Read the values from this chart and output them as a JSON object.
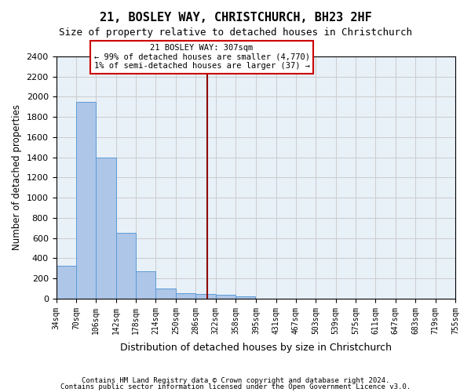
{
  "title": "21, BOSLEY WAY, CHRISTCHURCH, BH23 2HF",
  "subtitle": "Size of property relative to detached houses in Christchurch",
  "xlabel": "Distribution of detached houses by size in Christchurch",
  "ylabel": "Number of detached properties",
  "footnote1": "Contains HM Land Registry data © Crown copyright and database right 2024.",
  "footnote2": "Contains public sector information licensed under the Open Government Licence v3.0.",
  "bar_values": [
    325,
    1950,
    1400,
    650,
    270,
    100,
    50,
    45,
    35,
    20,
    0,
    0,
    0,
    0,
    0,
    0,
    0,
    0,
    0,
    0
  ],
  "bin_labels": [
    "34sqm",
    "70sqm",
    "106sqm",
    "142sqm",
    "178sqm",
    "214sqm",
    "250sqm",
    "286sqm",
    "322sqm",
    "358sqm",
    "395sqm",
    "431sqm",
    "467sqm",
    "503sqm",
    "539sqm",
    "575sqm",
    "611sqm",
    "647sqm",
    "683sqm",
    "719sqm",
    "755sqm"
  ],
  "bin_edges": [
    34,
    70,
    106,
    142,
    178,
    214,
    250,
    286,
    322,
    358,
    395,
    431,
    467,
    503,
    539,
    575,
    611,
    647,
    683,
    719,
    755
  ],
  "property_size": 307,
  "property_label": "21 BOSLEY WAY: 307sqm",
  "annotation_line1": "← 99% of detached houses are smaller (4,770)",
  "annotation_line2": "1% of semi-detached houses are larger (37) →",
  "bar_color": "#aec6e8",
  "bar_edge_color": "#5b9bd5",
  "vline_color": "#8b0000",
  "annotation_box_color": "#ffffff",
  "annotation_box_edge": "#cc0000",
  "background_color": "#ffffff",
  "grid_color": "#cccccc",
  "ylim": [
    0,
    2400
  ],
  "yticks": [
    0,
    200,
    400,
    600,
    800,
    1000,
    1200,
    1400,
    1600,
    1800,
    2000,
    2200,
    2400
  ]
}
